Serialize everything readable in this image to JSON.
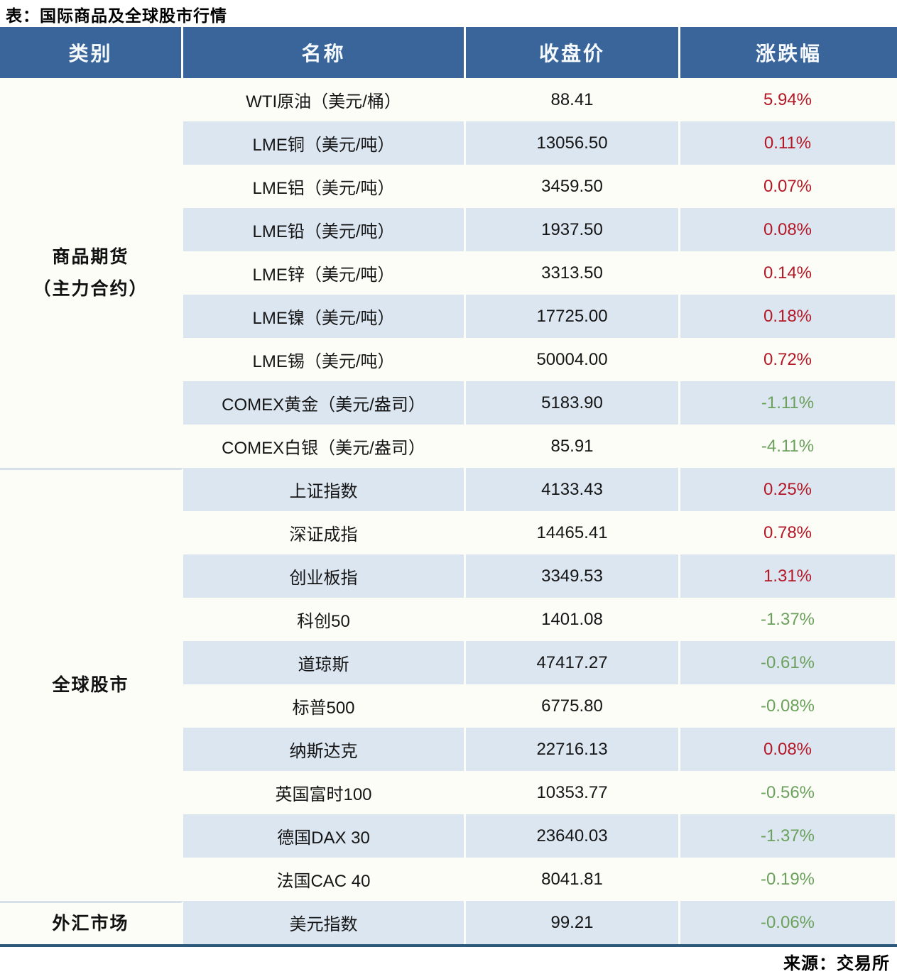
{
  "title": "表：国际商品及全球股市行情",
  "source": "来源：交易所",
  "colors": {
    "header_bg": "#3a659b",
    "stripe_bg": "#dce6f1",
    "row_bg": "#fdfdf8",
    "up_color": "#b41826",
    "down_color": "#6ba15c",
    "bottom_border": "#2e5879"
  },
  "table": {
    "headers": [
      "类别",
      "名称",
      "收盘价",
      "涨跌幅"
    ],
    "categories": [
      {
        "label": "商品期货（主力合约）",
        "label_lines": [
          "商品期货",
          "（主力合约）"
        ],
        "rows": [
          {
            "name": "WTI原油（美元/桶）",
            "close": "88.41",
            "change": "5.94%",
            "direction": "up"
          },
          {
            "name": "LME铜（美元/吨）",
            "close": "13056.50",
            "change": "0.11%",
            "direction": "up"
          },
          {
            "name": "LME铝（美元/吨）",
            "close": "3459.50",
            "change": "0.07%",
            "direction": "up"
          },
          {
            "name": "LME铅（美元/吨）",
            "close": "1937.50",
            "change": "0.08%",
            "direction": "up"
          },
          {
            "name": "LME锌（美元/吨）",
            "close": "3313.50",
            "change": "0.14%",
            "direction": "up"
          },
          {
            "name": "LME镍（美元/吨）",
            "close": "17725.00",
            "change": "0.18%",
            "direction": "up"
          },
          {
            "name": "LME锡（美元/吨）",
            "close": "50004.00",
            "change": "0.72%",
            "direction": "up"
          },
          {
            "name": "COMEX黄金（美元/盎司）",
            "close": "5183.90",
            "change": "-1.11%",
            "direction": "down"
          },
          {
            "name": "COMEX白银（美元/盎司）",
            "close": "85.91",
            "change": "-4.11%",
            "direction": "down"
          }
        ]
      },
      {
        "label": "全球股市",
        "label_lines": [
          "全球股市"
        ],
        "rows": [
          {
            "name": "上证指数",
            "close": "4133.43",
            "change": "0.25%",
            "direction": "up"
          },
          {
            "name": "深证成指",
            "close": "14465.41",
            "change": "0.78%",
            "direction": "up"
          },
          {
            "name": "创业板指",
            "close": "3349.53",
            "change": "1.31%",
            "direction": "up"
          },
          {
            "name": "科创50",
            "close": "1401.08",
            "change": "-1.37%",
            "direction": "down"
          },
          {
            "name": "道琼斯",
            "close": "47417.27",
            "change": "-0.61%",
            "direction": "down"
          },
          {
            "name": "标普500",
            "close": "6775.80",
            "change": "-0.08%",
            "direction": "down"
          },
          {
            "name": "纳斯达克",
            "close": "22716.13",
            "change": "0.08%",
            "direction": "up"
          },
          {
            "name": "英国富时100",
            "close": "10353.77",
            "change": "-0.56%",
            "direction": "down"
          },
          {
            "name": "德国DAX 30",
            "close": "23640.03",
            "change": "-1.37%",
            "direction": "down"
          },
          {
            "name": "法国CAC 40",
            "close": "8041.81",
            "change": "-0.19%",
            "direction": "down"
          }
        ]
      },
      {
        "label": "外汇市场",
        "label_lines": [
          "外汇市场"
        ],
        "rows": [
          {
            "name": "美元指数",
            "close": "99.21",
            "change": "-0.06%",
            "direction": "down"
          }
        ]
      }
    ]
  },
  "chart_data": {
    "type": "table",
    "title": "表：国际商品及全球股市行情",
    "columns": [
      "类别",
      "名称",
      "收盘价",
      "涨跌幅"
    ],
    "rows": [
      [
        "商品期货（主力合约）",
        "WTI原油（美元/桶）",
        88.41,
        "5.94%"
      ],
      [
        "商品期货（主力合约）",
        "LME铜（美元/吨）",
        13056.5,
        "0.11%"
      ],
      [
        "商品期货（主力合约）",
        "LME铝（美元/吨）",
        3459.5,
        "0.07%"
      ],
      [
        "商品期货（主力合约）",
        "LME铅（美元/吨）",
        1937.5,
        "0.08%"
      ],
      [
        "商品期货（主力合约）",
        "LME锌（美元/吨）",
        3313.5,
        "0.14%"
      ],
      [
        "商品期货（主力合约）",
        "LME镍（美元/吨）",
        17725.0,
        "0.18%"
      ],
      [
        "商品期货（主力合约）",
        "LME锡（美元/吨）",
        50004.0,
        "0.72%"
      ],
      [
        "商品期货（主力合约）",
        "COMEX黄金（美元/盎司）",
        5183.9,
        "-1.11%"
      ],
      [
        "商品期货（主力合约）",
        "COMEX白银（美元/盎司）",
        85.91,
        "-4.11%"
      ],
      [
        "全球股市",
        "上证指数",
        4133.43,
        "0.25%"
      ],
      [
        "全球股市",
        "深证成指",
        14465.41,
        "0.78%"
      ],
      [
        "全球股市",
        "创业板指",
        3349.53,
        "1.31%"
      ],
      [
        "全球股市",
        "科创50",
        1401.08,
        "-1.37%"
      ],
      [
        "全球股市",
        "道琼斯",
        47417.27,
        "-0.61%"
      ],
      [
        "全球股市",
        "标普500",
        6775.8,
        "-0.08%"
      ],
      [
        "全球股市",
        "纳斯达克",
        22716.13,
        "0.08%"
      ],
      [
        "全球股市",
        "英国富时100",
        10353.77,
        "-0.56%"
      ],
      [
        "全球股市",
        "德国DAX 30",
        23640.03,
        "-1.37%"
      ],
      [
        "全球股市",
        "法国CAC 40",
        8041.81,
        "-0.19%"
      ],
      [
        "外汇市场",
        "美元指数",
        99.21,
        "-0.06%"
      ]
    ],
    "source": "来源：交易所",
    "layout_hints": "positive changes rendered red, negative changes rendered green; rows striped white/light-blue"
  }
}
